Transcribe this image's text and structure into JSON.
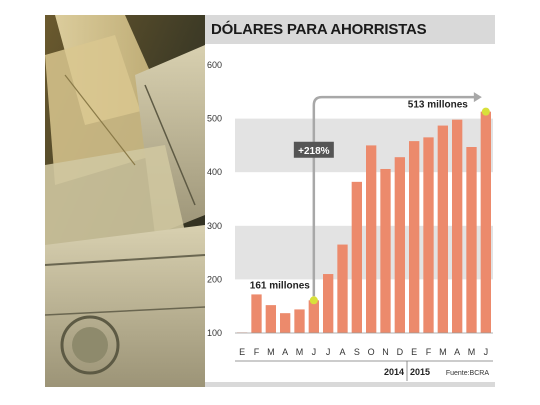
{
  "chart_data": {
    "type": "bar",
    "title": "DÓLARES PARA AHORRISTAS",
    "categories": [
      "E",
      "F",
      "M",
      "A",
      "M",
      "J",
      "J",
      "A",
      "S",
      "O",
      "N",
      "D",
      "E",
      "F",
      "M",
      "A",
      "M",
      "J"
    ],
    "years": [
      {
        "label": "2014",
        "start": 0,
        "end": 11
      },
      {
        "label": "2015",
        "start": 12,
        "end": 17
      }
    ],
    "values": [
      101,
      172,
      152,
      137,
      144,
      161,
      210,
      265,
      382,
      450,
      406,
      428,
      458,
      465,
      487,
      498,
      447,
      513
    ],
    "ylim": [
      100,
      600
    ],
    "yticks": [
      "100",
      "200",
      "300",
      "400",
      "500",
      "600"
    ],
    "annotations": {
      "start_label": "161 millones",
      "end_label": "513 millones",
      "change_label": "+218%"
    },
    "source": "Fuente:BCRA",
    "colors": {
      "bar": "#ec8a6c",
      "band": "#e3e3e3",
      "marker": "#d8e03a",
      "arrow": "#a8a8a8"
    }
  }
}
